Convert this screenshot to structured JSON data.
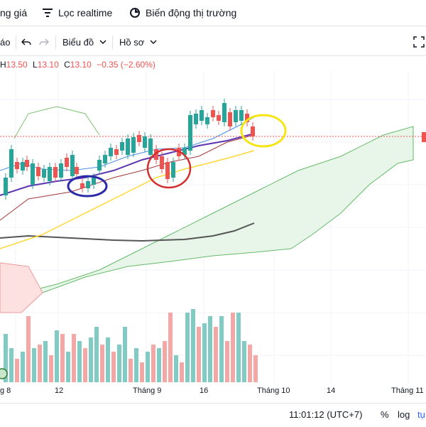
{
  "nav": {
    "item1": "ng giá",
    "item2": "Lọc realtime",
    "item3": "Biến động thị trường"
  },
  "toolbar": {
    "left_fragment": "áo",
    "chart_label": "Biểu đồ",
    "profile_label": "Hồ sơ"
  },
  "ohlc": {
    "h_key": "H",
    "h_val": "13.50",
    "l_key": "L",
    "l_val": "13.10",
    "c_key": "C",
    "c_val": "13.10",
    "change": "−0.35 (−2.60%)"
  },
  "chart_data": {
    "type": "candlestick",
    "x_ticks": [
      "g 8",
      "12",
      "Tháng 9",
      "16",
      "Tháng 10",
      "14",
      "Tháng 11"
    ],
    "last_close": 13.1,
    "high": 13.5,
    "low": 13.1,
    "change": -0.35,
    "change_pct": -2.6
  },
  "status": {
    "time": "11:01:12 (UTC+7)",
    "percent": "%",
    "log": "log",
    "auto": "tụ"
  },
  "colors": {
    "up": "#26a69a",
    "down": "#ef5350",
    "accent": "#2962ff",
    "text": "#131722"
  }
}
